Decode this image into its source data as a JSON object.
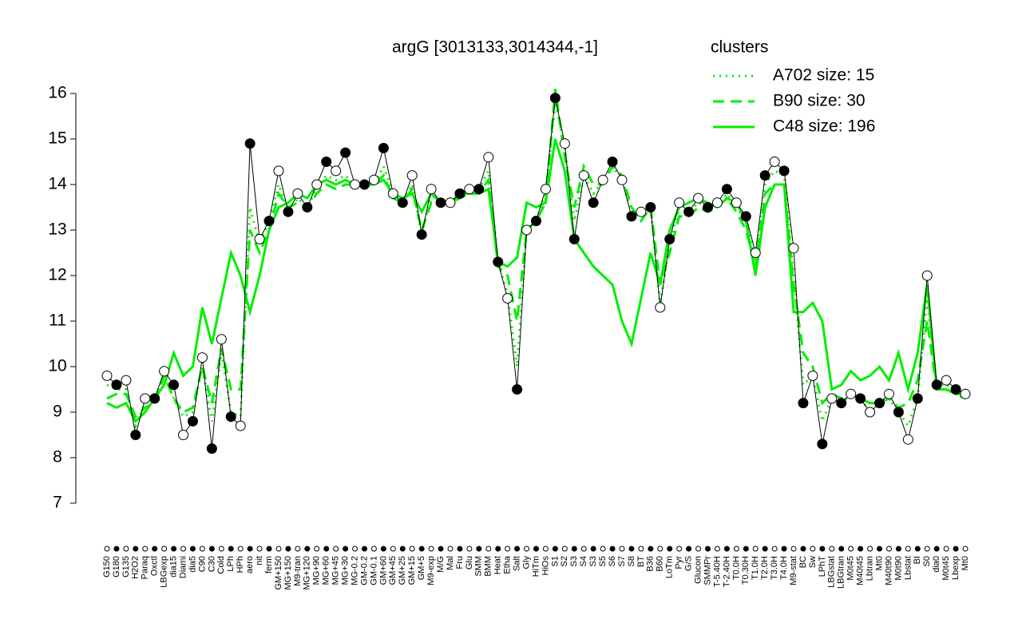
{
  "chart_data": {
    "type": "line",
    "title": "argG [3013133,3014344,-1]",
    "legend_title": "clusters",
    "legend_color": "#00ee00",
    "ylim": [
      7,
      16
    ],
    "yticks": [
      7,
      8,
      9,
      10,
      11,
      12,
      13,
      14,
      15,
      16
    ],
    "categories": [
      "G150",
      "G180",
      "G135",
      "H2O2",
      "Paraq",
      "Oxctl",
      "LBGexp",
      "dia15",
      "Diami",
      "dia5",
      "C90",
      "C30",
      "Cold",
      "LPh",
      "HPh",
      "aero",
      "nit",
      "ferm",
      "GM+150",
      "MG+150",
      "M9-tran",
      "MG+120",
      "MG+90",
      "MG+60",
      "MG+45",
      "MG+30",
      "MG-0.2",
      "GM-0.2",
      "GM-0.1",
      "GM+60",
      "GM+45",
      "GM+25",
      "GM+15",
      "GM+5",
      "M9-exp",
      "M/G",
      "Mal",
      "Fru",
      "Glu",
      "SMM",
      "BMM",
      "Heat",
      "Etha",
      "Salt",
      "Gly",
      "HiTm",
      "HiOs",
      "S1",
      "S2",
      "S3",
      "S4",
      "S3",
      "S5",
      "S6",
      "S7",
      "S8",
      "BT",
      "B36",
      "B60",
      "LoTm",
      "Pyr",
      "G/S",
      "Glucon",
      "SMMPr",
      "T-5.40H",
      "T-2.40H",
      "T0.0H",
      "T0.30H",
      "T1.0H",
      "T2.0H",
      "T3.0H",
      "T4.0H",
      "M9-stat",
      "BC",
      "Sw",
      "LPhT",
      "LBGstat",
      "LBGtran",
      "M0t45",
      "M40t45",
      "Lbtran",
      "Mt0",
      "M40t90",
      "M0t90",
      "Lbstat",
      "BI",
      "S0",
      "dia0",
      "M0t45",
      "Lbexp",
      "Mt0"
    ],
    "values": [
      9.8,
      9.6,
      9.7,
      8.5,
      9.3,
      9.3,
      9.9,
      9.6,
      8.5,
      8.8,
      10.2,
      8.2,
      10.6,
      8.9,
      8.7,
      14.9,
      12.8,
      13.2,
      14.3,
      13.4,
      13.8,
      13.5,
      14.0,
      14.5,
      14.3,
      14.7,
      14.0,
      14.0,
      14.1,
      14.8,
      13.8,
      13.6,
      14.2,
      12.9,
      13.9,
      13.6,
      13.6,
      13.8,
      13.9,
      13.9,
      14.6,
      12.3,
      11.5,
      9.5,
      13.0,
      13.2,
      13.9,
      15.9,
      14.9,
      12.8,
      14.2,
      13.6,
      14.1,
      14.5,
      14.1,
      13.3,
      13.4,
      13.5,
      11.3,
      12.8,
      13.6,
      13.4,
      13.7,
      13.5,
      13.6,
      13.9,
      13.6,
      13.3,
      12.5,
      14.2,
      14.5,
      14.3,
      12.6,
      9.2,
      9.8,
      8.3,
      9.3,
      9.2,
      9.4,
      9.3,
      9.0,
      9.2,
      9.4,
      9.0,
      8.4,
      9.3,
      12.0,
      9.6,
      9.7,
      9.5,
      9.4
    ],
    "series": [
      {
        "name": "A702 size: 15",
        "color": "#00ee00",
        "line_style": "dotted",
        "values": [
          9.6,
          9.5,
          9.5,
          8.7,
          9.2,
          9.3,
          9.8,
          9.3,
          8.9,
          9.0,
          10.0,
          8.8,
          10.3,
          9.0,
          8.9,
          13.5,
          12.7,
          13.2,
          14.0,
          13.4,
          13.7,
          13.5,
          13.9,
          14.2,
          14.1,
          14.2,
          14.0,
          14.0,
          14.0,
          14.4,
          13.8,
          13.6,
          14.0,
          12.9,
          13.8,
          13.6,
          13.6,
          13.8,
          13.9,
          13.9,
          14.3,
          12.3,
          11.6,
          10.0,
          13.0,
          13.2,
          13.8,
          15.8,
          14.8,
          13.2,
          14.2,
          13.8,
          14.1,
          14.4,
          14.1,
          13.4,
          13.3,
          13.5,
          11.4,
          12.7,
          13.5,
          13.4,
          13.6,
          13.5,
          13.5,
          13.8,
          13.5,
          13.2,
          12.4,
          14.0,
          14.3,
          14.2,
          12.0,
          9.6,
          9.8,
          8.8,
          9.3,
          9.2,
          9.4,
          9.3,
          9.0,
          9.2,
          9.3,
          9.0,
          8.7,
          9.3,
          11.5,
          9.6,
          9.6,
          9.5,
          9.4
        ]
      },
      {
        "name": "B90 size: 30",
        "color": "#00ee00",
        "line_style": "dashed",
        "values": [
          9.3,
          9.4,
          9.4,
          8.9,
          9.1,
          9.2,
          9.8,
          9.3,
          9.0,
          9.1,
          10.0,
          9.2,
          10.4,
          9.5,
          9.5,
          13.0,
          12.5,
          13.0,
          13.8,
          13.5,
          13.6,
          13.5,
          13.8,
          14.0,
          13.9,
          14.0,
          14.0,
          14.0,
          14.0,
          14.2,
          13.7,
          13.6,
          13.9,
          13.0,
          13.6,
          13.6,
          13.6,
          13.7,
          13.8,
          13.8,
          14.1,
          12.2,
          12.0,
          11.0,
          13.0,
          13.2,
          13.6,
          16.1,
          14.6,
          13.5,
          14.4,
          14.0,
          14.0,
          14.4,
          14.2,
          13.5,
          13.2,
          13.5,
          11.8,
          12.5,
          13.3,
          13.3,
          13.5,
          13.4,
          13.5,
          13.7,
          13.4,
          13.0,
          12.2,
          13.8,
          14.0,
          14.0,
          11.8,
          10.3,
          10.0,
          9.2,
          9.4,
          9.3,
          9.4,
          9.3,
          9.2,
          9.2,
          9.3,
          9.1,
          9.2,
          9.7,
          11.0,
          9.5,
          9.5,
          9.4,
          9.3
        ]
      },
      {
        "name": "C48 size: 196",
        "color": "#00ee00",
        "line_style": "solid",
        "values": [
          9.2,
          9.1,
          9.2,
          8.8,
          9.0,
          9.3,
          9.6,
          10.3,
          9.8,
          10.0,
          11.3,
          10.5,
          11.5,
          12.5,
          12.0,
          11.2,
          12.0,
          13.0,
          13.5,
          13.6,
          13.8,
          13.7,
          14.0,
          14.1,
          14.0,
          14.1,
          14.0,
          14.0,
          14.0,
          14.1,
          13.8,
          13.7,
          13.8,
          13.4,
          13.8,
          13.6,
          13.6,
          13.8,
          13.8,
          13.8,
          13.9,
          12.3,
          12.2,
          12.4,
          13.6,
          13.5,
          13.6,
          15.0,
          14.3,
          12.8,
          12.5,
          12.2,
          12.0,
          11.8,
          11.0,
          10.5,
          11.5,
          12.5,
          11.8,
          13.0,
          13.5,
          13.6,
          13.7,
          13.6,
          13.5,
          13.7,
          13.6,
          13.2,
          12.0,
          13.5,
          14.0,
          14.0,
          11.2,
          11.2,
          11.4,
          11.0,
          9.5,
          9.6,
          9.9,
          9.7,
          9.8,
          10.0,
          9.7,
          10.3,
          9.5,
          10.3,
          11.8,
          9.5,
          9.5,
          9.4,
          9.4
        ]
      }
    ]
  }
}
